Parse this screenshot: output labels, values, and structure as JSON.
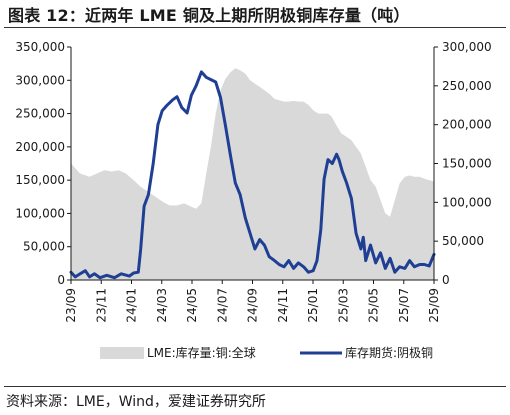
{
  "title": "图表 12：近两年 LME 铜及上期所阴极铜库存量（吨）",
  "source": "资料来源：LME，Wind，爱建证券研究所",
  "chart_data": {
    "type": "area",
    "title": "图表 12：近两年 LME 铜及上期所阴极铜库存量（吨）",
    "x_start": "2023-09-01",
    "x_end": "2025-09-30",
    "x_ticks": [
      "23/09",
      "23/11",
      "24/01",
      "24/03",
      "24/05",
      "24/07",
      "24/09",
      "24/11",
      "25/01",
      "25/03",
      "25/05",
      "25/07",
      "25/09"
    ],
    "y_left": {
      "lim": [
        0,
        350000
      ],
      "ticks": [
        "0",
        "50,000",
        "100,000",
        "150,000",
        "200,000",
        "250,000",
        "300,000",
        "350,000"
      ]
    },
    "y_right": {
      "lim": [
        0,
        300000
      ],
      "ticks": [
        "0",
        "50,000",
        "100,000",
        "150,000",
        "200,000",
        "250,000",
        "300,000"
      ]
    },
    "grid": false,
    "legend_position": "bottom",
    "series": [
      {
        "name": "LME:库存量:铜:全球",
        "kind": "area",
        "axis": "left",
        "color": "#d9d9d9",
        "points": [
          [
            "2023-09-01",
            175000
          ],
          [
            "2023-09-20",
            160000
          ],
          [
            "2023-10-10",
            155000
          ],
          [
            "2023-10-25",
            160000
          ],
          [
            "2023-11-10",
            165000
          ],
          [
            "2023-11-25",
            163000
          ],
          [
            "2023-12-10",
            165000
          ],
          [
            "2023-12-25",
            160000
          ],
          [
            "2024-01-10",
            150000
          ],
          [
            "2024-01-25",
            140000
          ],
          [
            "2024-02-10",
            132000
          ],
          [
            "2024-02-25",
            125000
          ],
          [
            "2024-03-10",
            118000
          ],
          [
            "2024-03-25",
            112000
          ],
          [
            "2024-04-10",
            112000
          ],
          [
            "2024-04-25",
            115000
          ],
          [
            "2024-05-10",
            110000
          ],
          [
            "2024-05-20",
            107000
          ],
          [
            "2024-05-31",
            115000
          ],
          [
            "2024-06-10",
            160000
          ],
          [
            "2024-06-20",
            200000
          ],
          [
            "2024-06-30",
            250000
          ],
          [
            "2024-07-10",
            285000
          ],
          [
            "2024-07-20",
            302000
          ],
          [
            "2024-07-31",
            312000
          ],
          [
            "2024-08-10",
            318000
          ],
          [
            "2024-08-20",
            315000
          ],
          [
            "2024-08-31",
            310000
          ],
          [
            "2024-09-10",
            300000
          ],
          [
            "2024-09-20",
            295000
          ],
          [
            "2024-09-30",
            290000
          ],
          [
            "2024-10-10",
            285000
          ],
          [
            "2024-10-20",
            280000
          ],
          [
            "2024-10-31",
            272000
          ],
          [
            "2024-11-10",
            270000
          ],
          [
            "2024-11-20",
            268000
          ],
          [
            "2024-11-30",
            268000
          ],
          [
            "2024-12-10",
            269000
          ],
          [
            "2024-12-20",
            268000
          ],
          [
            "2024-12-31",
            268000
          ],
          [
            "2025-01-10",
            263000
          ],
          [
            "2025-01-20",
            255000
          ],
          [
            "2025-01-31",
            250000
          ],
          [
            "2025-02-10",
            250000
          ],
          [
            "2025-02-20",
            250000
          ],
          [
            "2025-02-28",
            245000
          ],
          [
            "2025-03-10",
            232000
          ],
          [
            "2025-03-20",
            220000
          ],
          [
            "2025-03-31",
            215000
          ],
          [
            "2025-04-10",
            210000
          ],
          [
            "2025-04-20",
            200000
          ],
          [
            "2025-04-30",
            190000
          ],
          [
            "2025-05-10",
            170000
          ],
          [
            "2025-05-20",
            150000
          ],
          [
            "2025-05-31",
            140000
          ],
          [
            "2025-06-10",
            120000
          ],
          [
            "2025-06-20",
            100000
          ],
          [
            "2025-06-30",
            95000
          ],
          [
            "2025-07-10",
            120000
          ],
          [
            "2025-07-20",
            145000
          ],
          [
            "2025-07-31",
            155000
          ],
          [
            "2025-08-10",
            157000
          ],
          [
            "2025-08-20",
            155000
          ],
          [
            "2025-08-31",
            155000
          ],
          [
            "2025-09-10",
            152000
          ],
          [
            "2025-09-20",
            150000
          ],
          [
            "2025-09-30",
            148000
          ]
        ]
      },
      {
        "name": "库存期货:阴极铜",
        "kind": "line",
        "axis": "right",
        "color": "#1f3f95",
        "points": [
          [
            "2023-09-01",
            10000
          ],
          [
            "2023-09-10",
            4000
          ],
          [
            "2023-09-20",
            8000
          ],
          [
            "2023-10-01",
            12000
          ],
          [
            "2023-10-10",
            4000
          ],
          [
            "2023-10-20",
            8000
          ],
          [
            "2023-11-01",
            3000
          ],
          [
            "2023-11-15",
            6000
          ],
          [
            "2023-12-01",
            3000
          ],
          [
            "2023-12-15",
            8000
          ],
          [
            "2024-01-01",
            5000
          ],
          [
            "2024-01-10",
            9000
          ],
          [
            "2024-01-20",
            10000
          ],
          [
            "2024-01-25",
            40000
          ],
          [
            "2024-02-01",
            95000
          ],
          [
            "2024-02-10",
            110000
          ],
          [
            "2024-02-20",
            150000
          ],
          [
            "2024-03-01",
            200000
          ],
          [
            "2024-03-10",
            218000
          ],
          [
            "2024-03-20",
            225000
          ],
          [
            "2024-04-01",
            232000
          ],
          [
            "2024-04-10",
            236000
          ],
          [
            "2024-04-20",
            222000
          ],
          [
            "2024-05-01",
            215000
          ],
          [
            "2024-05-10",
            238000
          ],
          [
            "2024-05-20",
            250000
          ],
          [
            "2024-05-31",
            268000
          ],
          [
            "2024-06-10",
            261000
          ],
          [
            "2024-06-20",
            258000
          ],
          [
            "2024-06-30",
            255000
          ],
          [
            "2024-07-10",
            235000
          ],
          [
            "2024-07-20",
            200000
          ],
          [
            "2024-07-31",
            160000
          ],
          [
            "2024-08-10",
            125000
          ],
          [
            "2024-08-20",
            110000
          ],
          [
            "2024-08-31",
            80000
          ],
          [
            "2024-09-10",
            60000
          ],
          [
            "2024-09-20",
            40000
          ],
          [
            "2024-09-30",
            52000
          ],
          [
            "2024-10-10",
            45000
          ],
          [
            "2024-10-20",
            30000
          ],
          [
            "2024-10-31",
            25000
          ],
          [
            "2024-11-10",
            20000
          ],
          [
            "2024-11-20",
            17000
          ],
          [
            "2024-11-30",
            25000
          ],
          [
            "2024-12-10",
            15000
          ],
          [
            "2024-12-20",
            22000
          ],
          [
            "2024-12-31",
            17000
          ],
          [
            "2025-01-10",
            10000
          ],
          [
            "2025-01-20",
            12000
          ],
          [
            "2025-01-28",
            25000
          ],
          [
            "2025-02-05",
            65000
          ],
          [
            "2025-02-12",
            130000
          ],
          [
            "2025-02-20",
            155000
          ],
          [
            "2025-03-01",
            150000
          ],
          [
            "2025-03-10",
            162000
          ],
          [
            "2025-03-15",
            155000
          ],
          [
            "2025-03-22",
            140000
          ],
          [
            "2025-03-31",
            125000
          ],
          [
            "2025-04-10",
            105000
          ],
          [
            "2025-04-20",
            60000
          ],
          [
            "2025-04-30",
            40000
          ],
          [
            "2025-05-05",
            55000
          ],
          [
            "2025-05-10",
            25000
          ],
          [
            "2025-05-20",
            45000
          ],
          [
            "2025-05-31",
            22000
          ],
          [
            "2025-06-10",
            35000
          ],
          [
            "2025-06-20",
            15000
          ],
          [
            "2025-06-30",
            28000
          ],
          [
            "2025-07-10",
            10000
          ],
          [
            "2025-07-20",
            17000
          ],
          [
            "2025-07-31",
            15000
          ],
          [
            "2025-08-10",
            25000
          ],
          [
            "2025-08-20",
            17000
          ],
          [
            "2025-08-31",
            20000
          ],
          [
            "2025-09-10",
            20000
          ],
          [
            "2025-09-20",
            18000
          ],
          [
            "2025-09-30",
            33000
          ]
        ]
      }
    ]
  }
}
